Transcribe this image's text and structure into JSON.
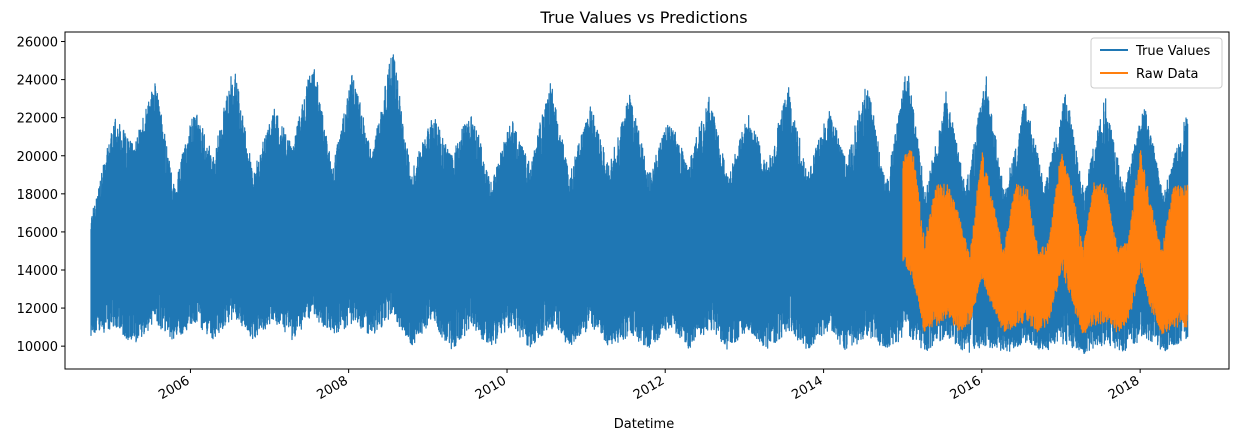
{
  "chart_data": {
    "type": "line",
    "title": "True Values vs Predictions",
    "xlabel": "Datetime",
    "ylabel": "",
    "xlim": [
      "2004-06-01",
      "2019-02-15"
    ],
    "ylim": [
      8800,
      26500
    ],
    "x_ticks": [
      "2006",
      "2008",
      "2010",
      "2012",
      "2014",
      "2016",
      "2018"
    ],
    "y_ticks": [
      10000,
      12000,
      14000,
      16000,
      18000,
      20000,
      22000,
      24000,
      26000
    ],
    "grid": false,
    "legend_position": "upper right",
    "series": [
      {
        "name": "True Values",
        "color": "#1f77b4",
        "x_range": [
          "2004-10-01",
          "2018-08-03"
        ],
        "envelope": {
          "dates": [
            "2004-10-01",
            "2005-01-15",
            "2005-04-15",
            "2005-07-20",
            "2005-10-15",
            "2006-01-20",
            "2006-04-15",
            "2006-07-20",
            "2006-10-15",
            "2007-01-20",
            "2007-04-15",
            "2007-07-20",
            "2007-10-15",
            "2008-01-20",
            "2008-04-15",
            "2008-07-20",
            "2008-10-15",
            "2009-01-20",
            "2009-04-15",
            "2009-07-20",
            "2009-10-15",
            "2010-01-20",
            "2010-04-15",
            "2010-07-20",
            "2010-10-15",
            "2011-01-20",
            "2011-04-15",
            "2011-07-20",
            "2011-10-15",
            "2012-01-20",
            "2012-04-15",
            "2012-07-20",
            "2012-10-15",
            "2013-01-20",
            "2013-04-15",
            "2013-07-20",
            "2013-10-15",
            "2014-01-20",
            "2014-04-15",
            "2014-07-20",
            "2014-10-15",
            "2015-01-20",
            "2015-04-15",
            "2015-07-20",
            "2015-10-15",
            "2016-01-20",
            "2016-04-15",
            "2016-07-20",
            "2016-10-15",
            "2017-01-20",
            "2017-04-15",
            "2017-07-20",
            "2017-10-15",
            "2018-01-20",
            "2018-04-15",
            "2018-08-03"
          ],
          "upper": [
            17000,
            22000,
            20500,
            24000,
            18500,
            22500,
            20000,
            24800,
            19000,
            22500,
            20500,
            25200,
            19500,
            24600,
            20000,
            25700,
            19000,
            22300,
            20000,
            22600,
            18500,
            22000,
            19500,
            24000,
            19000,
            22700,
            19500,
            23300,
            19000,
            22000,
            19500,
            23300,
            19000,
            22300,
            19500,
            23700,
            19000,
            22600,
            19800,
            24000,
            18500,
            24700,
            18000,
            23400,
            18300,
            24300,
            18000,
            23200,
            18300,
            23500,
            18000,
            23200,
            18300,
            22800,
            18000,
            22200
          ],
          "lower": [
            10400,
            11000,
            10000,
            11200,
            10300,
            11200,
            10300,
            11500,
            10300,
            11300,
            10300,
            11600,
            10500,
            11200,
            10500,
            11600,
            10000,
            11200,
            9700,
            11000,
            9900,
            11000,
            9900,
            11000,
            10000,
            11000,
            9900,
            10500,
            9800,
            11000,
            9800,
            10900,
            9800,
            10800,
            9800,
            10800,
            9800,
            10800,
            9700,
            10500,
            9700,
            10600,
            9700,
            10500,
            9600,
            10000,
            9600,
            10200,
            9700,
            10100,
            9600,
            10100,
            9700,
            10400,
            9700,
            10400
          ]
        }
      },
      {
        "name": "Raw Data",
        "color": "#ff7f0e",
        "x_range": [
          "2015-01-01",
          "2018-08-03"
        ],
        "envelope": {
          "dates": [
            "2015-01-01",
            "2015-02-15",
            "2015-04-10",
            "2015-06-01",
            "2015-07-25",
            "2015-09-15",
            "2015-11-05",
            "2016-01-01",
            "2016-02-15",
            "2016-04-10",
            "2016-06-01",
            "2016-07-25",
            "2016-09-15",
            "2016-11-05",
            "2017-01-01",
            "2017-02-15",
            "2017-04-10",
            "2017-06-01",
            "2017-07-25",
            "2017-09-15",
            "2017-11-05",
            "2018-01-01",
            "2018-02-15",
            "2018-04-10",
            "2018-06-01",
            "2018-08-03"
          ],
          "upper": [
            20000,
            20400,
            15500,
            18500,
            18500,
            17000,
            14800,
            20300,
            17800,
            15000,
            18500,
            18500,
            15000,
            15500,
            20300,
            18700,
            15100,
            18600,
            18500,
            15200,
            15500,
            20400,
            17600,
            15000,
            18500,
            18500
          ],
          "lower": [
            14500,
            13500,
            10700,
            11000,
            11500,
            10700,
            11200,
            13500,
            12000,
            10700,
            11000,
            11300,
            10700,
            11200,
            14000,
            12300,
            10600,
            11000,
            11300,
            10700,
            11200,
            14000,
            12000,
            10600,
            11000,
            11000
          ]
        }
      }
    ]
  }
}
